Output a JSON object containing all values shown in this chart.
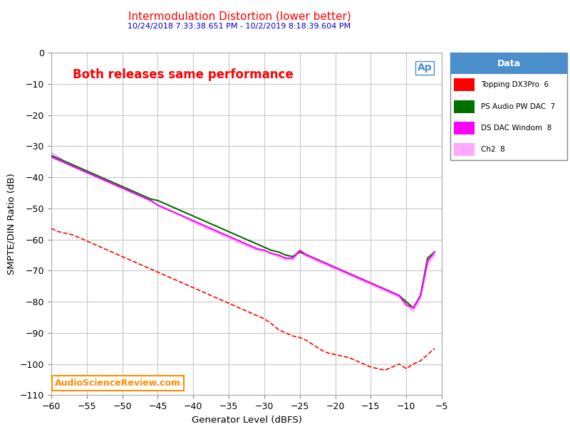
{
  "title": "Intermodulation Distortion (lower better)",
  "subtitle": "10/24/2018 7:33:38.651 PM - 10/2/2019 8:18:39.604 PM",
  "title_color": "#ff0000",
  "subtitle_color": "#0000cc",
  "xlabel": "Generator Level (dBFS)",
  "ylabel": "SMPTE/DIN Ratio (dB)",
  "xlim": [
    -60,
    -5
  ],
  "ylim": [
    -110,
    0
  ],
  "xticks": [
    -60,
    -55,
    -50,
    -45,
    -40,
    -35,
    -30,
    -25,
    -20,
    -15,
    -10,
    -5
  ],
  "yticks": [
    0,
    -10,
    -20,
    -30,
    -40,
    -50,
    -60,
    -70,
    -80,
    -90,
    -100,
    -110
  ],
  "bg_color": "#ffffff",
  "grid_color": "#c8c8c8",
  "annotation_text": "Both releases same performance",
  "annotation_color": "#ff0000",
  "watermark_text": "AudioScienceReview.com",
  "watermark_color": "#ff8c00",
  "legend_title": "Data",
  "legend_title_bg": "#4a8fcc",
  "legend_entries": [
    {
      "label": "Topping DX3Pro  6",
      "color": "#ff0000"
    },
    {
      "label": "PS Audio PW DAC  7",
      "color": "#007000"
    },
    {
      "label": "DS DAC Windom  8",
      "color": "#ff00ff"
    },
    {
      "label": "Ch2  8",
      "color": "#ffaaff"
    }
  ],
  "topping_x": [
    -60,
    -59,
    -58,
    -57,
    -56,
    -55,
    -54,
    -53,
    -52,
    -51,
    -50,
    -49,
    -48,
    -47,
    -46,
    -45,
    -44,
    -43,
    -42,
    -41,
    -40,
    -39,
    -38,
    -37,
    -36,
    -35,
    -34,
    -33,
    -32,
    -31,
    -30,
    -29,
    -28,
    -27,
    -26,
    -25,
    -24,
    -23,
    -22,
    -21,
    -20,
    -19,
    -18,
    -17,
    -16,
    -15,
    -14,
    -13,
    -12,
    -11,
    -10,
    -9,
    -8,
    -7,
    -6
  ],
  "topping_y": [
    -56.5,
    -57.5,
    -58.0,
    -58.5,
    -59.5,
    -60.5,
    -61.5,
    -62.5,
    -63.5,
    -64.5,
    -65.5,
    -66.5,
    -67.5,
    -68.5,
    -69.5,
    -70.5,
    -71.5,
    -72.5,
    -73.5,
    -74.5,
    -75.5,
    -76.5,
    -77.5,
    -78.5,
    -79.5,
    -80.5,
    -81.5,
    -82.5,
    -83.5,
    -84.5,
    -85.5,
    -87,
    -89,
    -90,
    -91,
    -91.5,
    -92.5,
    -94,
    -95.5,
    -96.5,
    -97,
    -97.5,
    -98,
    -99,
    -100,
    -101,
    -101.5,
    -102,
    -101,
    -100,
    -101.5,
    -100,
    -99,
    -97,
    -95
  ],
  "ps_x": [
    -60,
    -59,
    -58,
    -57,
    -56,
    -55,
    -54,
    -53,
    -52,
    -51,
    -50,
    -49,
    -48,
    -47,
    -46,
    -45,
    -44,
    -43,
    -42,
    -41,
    -40,
    -39,
    -38,
    -37,
    -36,
    -35,
    -34,
    -33,
    -32,
    -31,
    -30,
    -29,
    -28,
    -27,
    -26,
    -25,
    -24,
    -23,
    -22,
    -21,
    -20,
    -19,
    -18,
    -17,
    -16,
    -15,
    -14,
    -13,
    -12,
    -11,
    -10,
    -9,
    -8,
    -7,
    -6
  ],
  "ps_y": [
    -33,
    -34,
    -35,
    -36,
    -37,
    -38,
    -39,
    -40,
    -41,
    -42,
    -43,
    -44,
    -45,
    -46,
    -47,
    -47.5,
    -48.5,
    -49.5,
    -50.5,
    -51.5,
    -52.5,
    -53.5,
    -54.5,
    -55.5,
    -56.5,
    -57.5,
    -58.5,
    -59.5,
    -60.5,
    -61.5,
    -62.5,
    -63.5,
    -64,
    -65,
    -65.5,
    -64,
    -65,
    -66,
    -67,
    -68,
    -69,
    -70,
    -71,
    -72,
    -73,
    -74,
    -75,
    -76,
    -77,
    -78,
    -80,
    -82,
    -78,
    -66,
    -64
  ],
  "windom_x": [
    -60,
    -59,
    -58,
    -57,
    -56,
    -55,
    -54,
    -53,
    -52,
    -51,
    -50,
    -49,
    -48,
    -47,
    -46,
    -45,
    -44,
    -43,
    -42,
    -41,
    -40,
    -39,
    -38,
    -37,
    -36,
    -35,
    -34,
    -33,
    -32,
    -31,
    -30,
    -29,
    -28,
    -27,
    -26,
    -25,
    -24,
    -23,
    -22,
    -21,
    -20,
    -19,
    -18,
    -17,
    -16,
    -15,
    -14,
    -13,
    -12,
    -11,
    -10,
    -9,
    -8,
    -7,
    -6
  ],
  "windom_y": [
    -33.5,
    -34.5,
    -35.5,
    -36.5,
    -37.5,
    -38.5,
    -39.5,
    -40.5,
    -41.5,
    -42.5,
    -43.5,
    -44.5,
    -45.5,
    -46.5,
    -47.5,
    -49,
    -50,
    -51,
    -52,
    -53,
    -54,
    -55,
    -56,
    -57,
    -58,
    -59,
    -60,
    -61,
    -62,
    -63,
    -63.5,
    -64.5,
    -65,
    -66,
    -66,
    -63.5,
    -65,
    -66,
    -67,
    -68,
    -69,
    -70,
    -71,
    -72,
    -73,
    -74,
    -75,
    -76,
    -77,
    -78,
    -81,
    -82,
    -78,
    -67,
    -64
  ],
  "ch2_x": [
    -60,
    -59,
    -58,
    -57,
    -56,
    -55,
    -54,
    -53,
    -52,
    -51,
    -50,
    -49,
    -48,
    -47,
    -46,
    -45,
    -44,
    -43,
    -42,
    -41,
    -40,
    -39,
    -38,
    -37,
    -36,
    -35,
    -34,
    -33,
    -32,
    -31,
    -30,
    -29,
    -28,
    -27,
    -26,
    -25,
    -24,
    -23,
    -22,
    -21,
    -20,
    -19,
    -18,
    -17,
    -16,
    -15,
    -14,
    -13,
    -12,
    -11,
    -10,
    -9,
    -8,
    -7,
    -6
  ],
  "ch2_y": [
    -32,
    -33.5,
    -35,
    -36.5,
    -37.5,
    -38.5,
    -39.5,
    -40.5,
    -41.5,
    -42.5,
    -43.5,
    -44.5,
    -45.5,
    -46.5,
    -47.5,
    -49,
    -50,
    -51,
    -52,
    -53,
    -54.5,
    -55.5,
    -56.5,
    -57.5,
    -58.5,
    -59.5,
    -60.5,
    -61.5,
    -62.5,
    -63.5,
    -63.5,
    -64.5,
    -65.5,
    -66.5,
    -66.5,
    -64,
    -65.5,
    -66.5,
    -67.5,
    -68.5,
    -69.5,
    -70.5,
    -71.5,
    -72.5,
    -73.5,
    -74.5,
    -75.5,
    -76.5,
    -77.5,
    -78.5,
    -81,
    -83,
    -79,
    -68,
    -65
  ]
}
